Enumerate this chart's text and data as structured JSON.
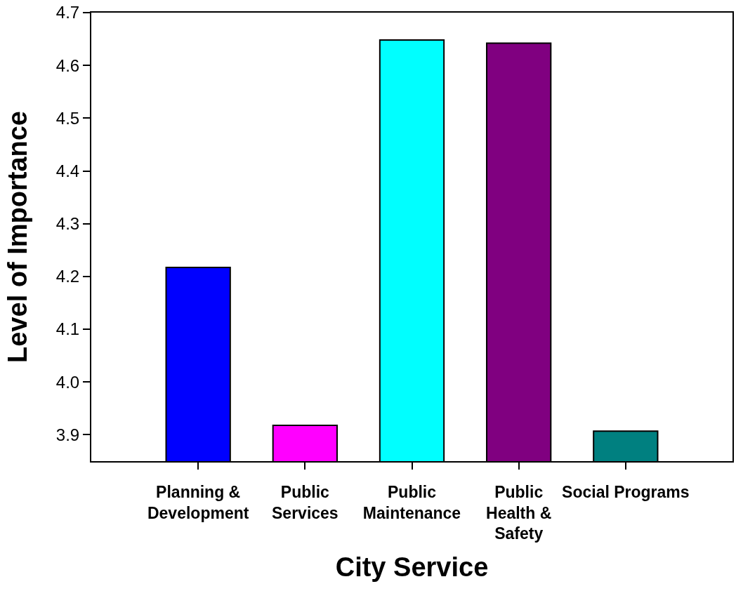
{
  "chart_data": {
    "type": "bar",
    "xlabel": "City Service",
    "ylabel": "Level of Importance",
    "categories": [
      "Planning &\nDevelopment",
      "Public\nServices",
      "Public\nMaintenance",
      "Public\nHealth &\nSafety",
      "Social Programs"
    ],
    "values": [
      4.217,
      3.918,
      4.648,
      4.642,
      3.907
    ],
    "colors": [
      "#0000ff",
      "#ff00ff",
      "#00ffff",
      "#800080",
      "#008080"
    ],
    "ylim": [
      3.85,
      4.7
    ],
    "yticks": [
      3.9,
      {
        "value": 4,
        "label": "4.0"
      },
      4.1,
      4.2,
      4.3,
      4.4,
      4.5,
      4.6,
      4.7
    ]
  }
}
